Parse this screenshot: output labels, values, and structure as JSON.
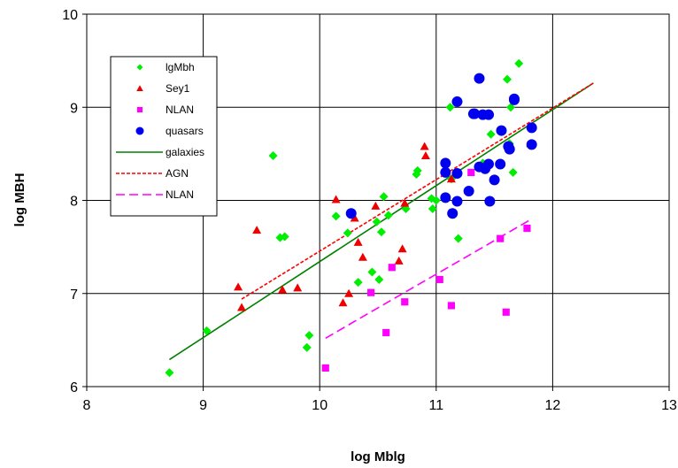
{
  "chart_data": {
    "type": "scatter",
    "xlabel": "log Mblg",
    "ylabel": "log MBH",
    "xlim": [
      8,
      13
    ],
    "ylim": [
      6,
      10
    ],
    "xticks": [
      "8",
      "9",
      "10",
      "11",
      "12",
      "13"
    ],
    "yticks": [
      "6",
      "7",
      "8",
      "9",
      "10"
    ],
    "grid": true,
    "legend_position": "top-left",
    "series": [
      {
        "name": "lgMbh",
        "kind": "points",
        "marker": "diamond",
        "color": "#00ee00",
        "points": [
          [
            8.71,
            6.15
          ],
          [
            9.03,
            6.6
          ],
          [
            9.6,
            8.48
          ],
          [
            9.66,
            7.6
          ],
          [
            9.7,
            7.61
          ],
          [
            9.89,
            6.42
          ],
          [
            9.91,
            6.55
          ],
          [
            10.14,
            7.83
          ],
          [
            10.24,
            7.65
          ],
          [
            10.33,
            7.12
          ],
          [
            10.45,
            7.23
          ],
          [
            10.49,
            7.77
          ],
          [
            10.51,
            7.15
          ],
          [
            10.53,
            7.66
          ],
          [
            10.55,
            8.04
          ],
          [
            10.59,
            7.84
          ],
          [
            10.74,
            7.91
          ],
          [
            10.83,
            8.28
          ],
          [
            10.84,
            8.32
          ],
          [
            10.96,
            8.02
          ],
          [
            10.97,
            7.91
          ],
          [
            11.0,
            8.0
          ],
          [
            11.12,
            9.0
          ],
          [
            11.13,
            8.23
          ],
          [
            11.19,
            7.59
          ],
          [
            11.47,
            8.71
          ],
          [
            11.61,
            9.3
          ],
          [
            11.63,
            8.61
          ],
          [
            11.64,
            9.0
          ],
          [
            11.66,
            8.3
          ],
          [
            11.71,
            9.47
          ],
          [
            11.4,
            8.4
          ]
        ]
      },
      {
        "name": "Sey1",
        "kind": "points",
        "marker": "triangle",
        "color": "#ee0000",
        "points": [
          [
            9.3,
            7.07
          ],
          [
            9.33,
            6.85
          ],
          [
            9.46,
            7.68
          ],
          [
            9.68,
            7.04
          ],
          [
            9.81,
            7.06
          ],
          [
            10.14,
            8.01
          ],
          [
            10.2,
            6.9
          ],
          [
            10.25,
            7.0
          ],
          [
            10.3,
            7.81
          ],
          [
            10.33,
            7.55
          ],
          [
            10.37,
            7.39
          ],
          [
            10.48,
            7.94
          ],
          [
            10.68,
            7.35
          ],
          [
            10.71,
            7.48
          ],
          [
            10.73,
            7.97
          ],
          [
            10.9,
            8.58
          ],
          [
            10.91,
            8.48
          ],
          [
            11.08,
            8.3
          ],
          [
            11.13,
            8.23
          ],
          [
            11.81,
            8.61
          ]
        ]
      },
      {
        "name": "NLAN",
        "kind": "points",
        "marker": "square",
        "color": "#ff00ff",
        "points": [
          [
            10.05,
            6.2
          ],
          [
            10.44,
            7.01
          ],
          [
            10.57,
            6.58
          ],
          [
            10.62,
            7.28
          ],
          [
            10.73,
            6.91
          ],
          [
            11.03,
            7.15
          ],
          [
            11.13,
            6.87
          ],
          [
            11.3,
            8.3
          ],
          [
            11.55,
            7.59
          ],
          [
            11.6,
            6.8
          ],
          [
            11.78,
            7.7
          ]
        ]
      },
      {
        "name": "quasars",
        "kind": "points",
        "marker": "circle",
        "color": "#0000ee",
        "points": [
          [
            10.27,
            7.86
          ],
          [
            11.08,
            8.4
          ],
          [
            11.08,
            8.3
          ],
          [
            11.08,
            8.03
          ],
          [
            11.14,
            7.86
          ],
          [
            11.18,
            8.29
          ],
          [
            11.18,
            7.99
          ],
          [
            11.18,
            9.06
          ],
          [
            11.28,
            8.1
          ],
          [
            11.32,
            8.93
          ],
          [
            11.33,
            8.93
          ],
          [
            11.37,
            9.31
          ],
          [
            11.37,
            8.36
          ],
          [
            11.4,
            8.92
          ],
          [
            11.42,
            8.34
          ],
          [
            11.45,
            8.39
          ],
          [
            11.45,
            8.92
          ],
          [
            11.46,
            7.99
          ],
          [
            11.5,
            8.22
          ],
          [
            11.55,
            8.39
          ],
          [
            11.56,
            8.75
          ],
          [
            11.62,
            8.58
          ],
          [
            11.63,
            8.55
          ],
          [
            11.67,
            9.09
          ],
          [
            11.67,
            9.08
          ],
          [
            11.82,
            8.78
          ],
          [
            11.82,
            8.6
          ]
        ]
      },
      {
        "name": "galaxies",
        "kind": "line",
        "dash": "solid",
        "color": "#008000",
        "points": [
          [
            8.71,
            6.29
          ],
          [
            12.35,
            9.26
          ]
        ]
      },
      {
        "name": "AGN",
        "kind": "line",
        "dash": "dotted",
        "color": "#ff0000",
        "points": [
          [
            9.33,
            6.94
          ],
          [
            12.35,
            9.26
          ]
        ]
      },
      {
        "name": "NLAN",
        "kind": "line",
        "dash": "dashed",
        "color": "#ff00ff",
        "points": [
          [
            10.05,
            6.52
          ],
          [
            11.82,
            7.8
          ]
        ]
      }
    ]
  }
}
